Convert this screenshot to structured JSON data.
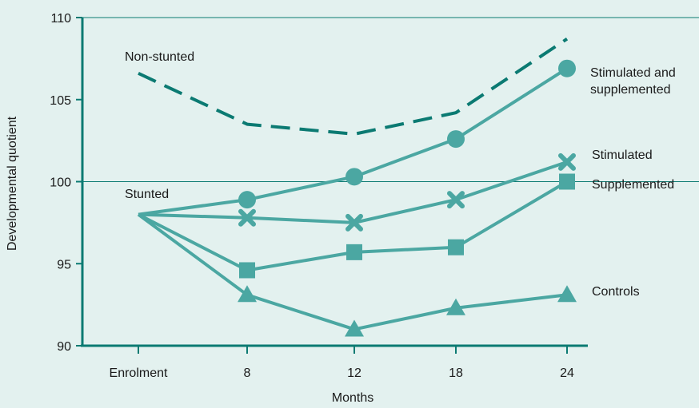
{
  "chart_data": {
    "type": "line",
    "xlabel": "Months",
    "ylabel": "Developmental quotient",
    "categories": [
      "Enrolment",
      "8",
      "12",
      "18",
      "24"
    ],
    "ylim": [
      90,
      110
    ],
    "yticks": [
      90,
      95,
      100,
      105,
      110
    ],
    "reference_lines": [
      100,
      110
    ],
    "grid": false,
    "colors": {
      "stunted": "#4ba7a2",
      "non_stunted": "#0b7a72",
      "background": "#e3f1ef",
      "axis": "#0b7a72"
    },
    "group_labels": {
      "non_stunted": "Non-stunted",
      "stunted": "Stunted"
    },
    "series": [
      {
        "name": "Non-stunted",
        "group": "non-stunted",
        "marker": "none",
        "style": "dashed",
        "values": [
          106.6,
          103.5,
          102.9,
          104.2,
          108.7
        ]
      },
      {
        "name": "Stimulated and supplemented",
        "group": "stunted",
        "marker": "circle",
        "style": "solid",
        "values": [
          98.0,
          98.9,
          100.3,
          102.6,
          106.9
        ]
      },
      {
        "name": "Stimulated",
        "group": "stunted",
        "marker": "cross",
        "style": "solid",
        "values": [
          98.0,
          97.8,
          97.5,
          98.9,
          101.2
        ]
      },
      {
        "name": "Supplemented",
        "group": "stunted",
        "marker": "square",
        "style": "solid",
        "values": [
          98.0,
          94.6,
          95.7,
          96.0,
          100.0
        ]
      },
      {
        "name": "Controls",
        "group": "stunted",
        "marker": "triangle",
        "style": "solid",
        "values": [
          98.0,
          93.1,
          91.0,
          92.3,
          93.1
        ]
      }
    ],
    "series_labels": {
      "stim_supp_line1": "Stimulated and",
      "stim_supp_line2": "supplemented",
      "stimulated": "Stimulated",
      "supplemented": "Supplemented",
      "controls": "Controls"
    }
  }
}
